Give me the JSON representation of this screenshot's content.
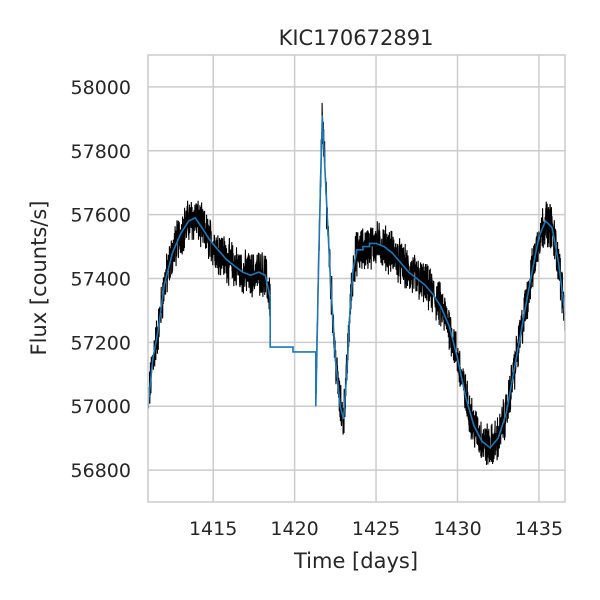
{
  "chart_data": {
    "type": "line",
    "title": "KIC170672891",
    "xlabel": "Time [days]",
    "ylabel": "Flux [counts/s]",
    "xlim": [
      1411.0,
      1436.6
    ],
    "ylim": [
      56700,
      58100
    ],
    "xticks": [
      1415,
      1420,
      1425,
      1430,
      1435
    ],
    "xtick_labels": [
      "1415",
      "1420",
      "1425",
      "1430",
      "1435"
    ],
    "yticks": [
      56800,
      57000,
      57200,
      57400,
      57600,
      57800,
      58000
    ],
    "ytick_labels": [
      "56800",
      "57000",
      "57200",
      "57400",
      "57600",
      "57800",
      "58000"
    ],
    "grid": true,
    "series": [
      {
        "role": "raw",
        "color": "#000000",
        "x": [
          1411.0,
          1411.3,
          1411.6,
          1412.0,
          1412.5,
          1413.0,
          1413.5,
          1413.9,
          1414.3,
          1414.8,
          1415.3,
          1415.8,
          1416.3,
          1416.8,
          1417.3,
          1417.8,
          1418.2,
          1418.5,
          1421.3,
          1421.5,
          1421.7,
          1421.9,
          1422.2,
          1422.5,
          1422.8,
          1423.0,
          1423.2,
          1423.4,
          1423.6,
          1423.8,
          1424.2,
          1424.6,
          1425.0,
          1425.5,
          1426.0,
          1426.5,
          1427.0,
          1427.5,
          1428.0,
          1428.5,
          1429.0,
          1429.5,
          1430.0,
          1430.5,
          1431.0,
          1431.5,
          1432.0,
          1432.5,
          1433.0,
          1433.5,
          1434.0,
          1434.5,
          1435.0,
          1435.4,
          1435.8,
          1436.2,
          1436.6
        ],
        "y": [
          57000,
          57150,
          57230,
          57380,
          57480,
          57540,
          57580,
          57590,
          57560,
          57520,
          57490,
          57460,
          57440,
          57420,
          57410,
          57420,
          57410,
          57340,
          57000,
          57500,
          57910,
          57700,
          57400,
          57150,
          57000,
          56960,
          57100,
          57300,
          57430,
          57480,
          57490,
          57500,
          57510,
          57500,
          57480,
          57450,
          57420,
          57400,
          57380,
          57350,
          57310,
          57250,
          57150,
          57030,
          56940,
          56890,
          56870,
          56900,
          56980,
          57120,
          57260,
          57400,
          57530,
          57580,
          57560,
          57450,
          57290
        ]
      },
      {
        "role": "smoothed",
        "color": "#1f77b4",
        "x": [
          1411.0,
          1411.3,
          1411.6,
          1412.0,
          1412.5,
          1413.0,
          1413.5,
          1413.9,
          1414.3,
          1414.8,
          1415.3,
          1415.8,
          1416.3,
          1416.8,
          1417.3,
          1417.8,
          1418.2,
          1418.5,
          1418.5,
          1419.9,
          1419.9,
          1421.3,
          1421.3,
          1421.5,
          1421.7,
          1421.9,
          1422.2,
          1422.5,
          1422.8,
          1423.0,
          1423.2,
          1423.4,
          1423.6,
          1423.8,
          1423.8,
          1424.2,
          1424.2,
          1424.6,
          1424.6,
          1425.0,
          1425.5,
          1426.0,
          1426.5,
          1427.0,
          1427.5,
          1428.0,
          1428.5,
          1429.0,
          1429.5,
          1430.0,
          1430.5,
          1431.0,
          1431.5,
          1432.0,
          1432.5,
          1433.0,
          1433.5,
          1434.0,
          1434.5,
          1435.0,
          1435.4,
          1435.8,
          1436.2,
          1436.6
        ],
        "y": [
          57000,
          57150,
          57230,
          57380,
          57480,
          57540,
          57580,
          57590,
          57560,
          57520,
          57490,
          57460,
          57440,
          57420,
          57410,
          57420,
          57410,
          57340,
          57185,
          57185,
          57170,
          57170,
          57000,
          57500,
          57910,
          57700,
          57400,
          57150,
          57000,
          56960,
          57100,
          57300,
          57430,
          57480,
          57490,
          57490,
          57500,
          57500,
          57510,
          57510,
          57500,
          57480,
          57450,
          57420,
          57400,
          57380,
          57350,
          57310,
          57250,
          57150,
          57030,
          56940,
          56890,
          56870,
          56900,
          56980,
          57120,
          57260,
          57400,
          57530,
          57580,
          57560,
          57450,
          57290
        ]
      }
    ]
  }
}
